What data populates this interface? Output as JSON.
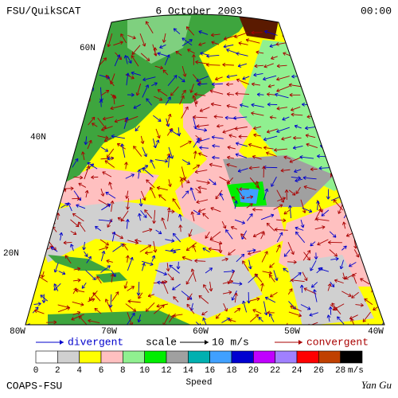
{
  "header": {
    "left": "FSU/QuikSCAT",
    "center": "6 October 2003",
    "right": "00:00"
  },
  "map": {
    "lat_labels": [
      "60N",
      "40N",
      "20N"
    ],
    "lon_labels": [
      "80W",
      "70W",
      "60W",
      "50W",
      "40W"
    ]
  },
  "legend": {
    "divergent": "divergent",
    "scale": "scale",
    "scale_value": "10 m/s",
    "convergent": "convergent"
  },
  "colorbar": {
    "colors": [
      "#ffffff",
      "#d0d0d0",
      "#ffff00",
      "#ffc0c0",
      "#90f090",
      "#00ee00",
      "#a0a0a0",
      "#00b0b0",
      "#40a0ff",
      "#0000d0",
      "#c000ff",
      "#a080ff",
      "#ff0000",
      "#c04000",
      "#000000"
    ],
    "labels": [
      "0",
      "2",
      "4",
      "6",
      "8",
      "10",
      "12",
      "14",
      "16",
      "18",
      "20",
      "22",
      "24",
      "26",
      "28"
    ],
    "unit": "m/s",
    "title": "Speed"
  },
  "footer": {
    "left": "COAPS-FSU",
    "right": "Yan Gu"
  }
}
